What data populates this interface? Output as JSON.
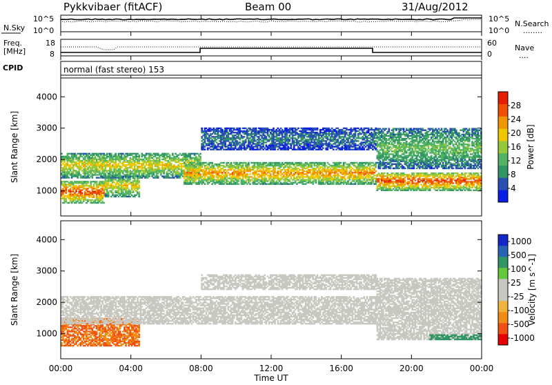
{
  "header": {
    "radar": "Pykkvibaer (fitACF)",
    "beam": "Beam 00",
    "date": "31/Aug/2012"
  },
  "noise_panel": {
    "left_label": "N.Sky",
    "left_ticks": [
      "10^5",
      "10^0"
    ],
    "right_ticks": [
      "10^5",
      "10^0"
    ],
    "right_label": "N.Search",
    "right_line": "........"
  },
  "freq_panel": {
    "left_label_1": "Freq.",
    "left_label_2": "[MHz]",
    "left_ticks": [
      "18",
      "8"
    ],
    "right_ticks": [
      "60",
      "0"
    ],
    "right_label": "Nave",
    "right_line": "...."
  },
  "cpid_panel": {
    "label": "CPID",
    "text": "normal (fast stereo) 153"
  },
  "colors": {
    "power": [
      "#0a1ee6",
      "#2850b4",
      "#329664",
      "#50b464",
      "#96c83c",
      "#f0c800",
      "#f09600",
      "#f05000",
      "#e61e00"
    ],
    "velocity": [
      "#e60000",
      "#f05014",
      "#f08c14",
      "#f0b43c",
      "#c8c8c0",
      "#c8c8c0",
      "#64c83c",
      "#329664",
      "#2864b4",
      "#1428c8"
    ]
  },
  "chart_data": [
    {
      "type": "heatmap",
      "quantity": "Power",
      "ylabel": "Slant Range [km]",
      "colorbar_label": "Power [dB]",
      "colorbar_ticks": [
        "28",
        "24",
        "20",
        "16",
        "12",
        "8",
        "4"
      ],
      "colorbar_range": [
        0,
        32
      ],
      "ylim": [
        200,
        4600
      ],
      "yticks": [
        1000,
        2000,
        3000,
        4000
      ],
      "xlim": [
        0,
        24
      ],
      "xticks": [
        "00:00",
        "04:00",
        "08:00",
        "12:00",
        "16:00",
        "20:00",
        "00:00"
      ],
      "echo_bands": [
        {
          "t": [
            0,
            2.5
          ],
          "range": [
            600,
            1300
          ],
          "power": 28
        },
        {
          "t": [
            2.5,
            4.5
          ],
          "range": [
            800,
            1500
          ],
          "power": 20
        },
        {
          "t": [
            0,
            8
          ],
          "range": [
            1400,
            2200
          ],
          "power": 20
        },
        {
          "t": [
            7,
            18
          ],
          "range": [
            1200,
            1900
          ],
          "power": 24
        },
        {
          "t": [
            8,
            18
          ],
          "range": [
            2300,
            3000
          ],
          "power": 8
        },
        {
          "t": [
            18,
            24
          ],
          "range": [
            1000,
            1600
          ],
          "power": 28
        },
        {
          "t": [
            18,
            24
          ],
          "range": [
            1700,
            3000
          ],
          "power": 14
        }
      ]
    },
    {
      "type": "heatmap",
      "quantity": "Velocity",
      "ylabel": "Slant Range [km]",
      "colorbar_label": "Velocity [m s^-1]",
      "colorbar_ticks": [
        "1000",
        "500",
        "100",
        "25",
        "-25",
        "-100",
        "-500",
        "-1000"
      ],
      "colorbar_range": [
        -1000,
        1000
      ],
      "ylim": [
        200,
        4600
      ],
      "yticks": [
        1000,
        2000,
        3000,
        4000
      ],
      "xlim": [
        0,
        24
      ],
      "xticks": [
        "00:00",
        "04:00",
        "08:00",
        "12:00",
        "16:00",
        "20:00",
        "00:00"
      ],
      "xlabel": "Time UT",
      "echo_bands": [
        {
          "t": [
            0,
            4.5
          ],
          "range": [
            600,
            1500
          ],
          "velocity": -300
        },
        {
          "t": [
            0,
            18
          ],
          "range": [
            1300,
            2200
          ],
          "velocity": 0
        },
        {
          "t": [
            8,
            18
          ],
          "range": [
            2400,
            2900
          ],
          "velocity": 0
        },
        {
          "t": [
            18,
            24
          ],
          "range": [
            800,
            2800
          ],
          "velocity": 0
        },
        {
          "t": [
            21,
            24
          ],
          "range": [
            800,
            1000
          ],
          "velocity": 200
        }
      ]
    }
  ]
}
